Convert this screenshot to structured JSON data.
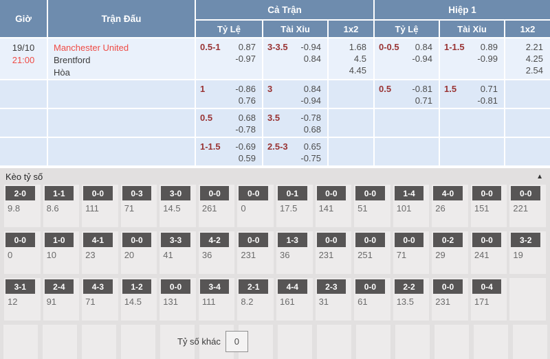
{
  "table": {
    "headers": {
      "time": "Giờ",
      "match": "Trận Đấu",
      "full_match": "Cả Trận",
      "first_half": "Hiệp 1",
      "handicap": "Tỷ Lệ",
      "over_under": "Tài Xỉu",
      "one_x_two": "1x2"
    },
    "rows": [
      {
        "date": "19/10",
        "time": "21:00",
        "home": "Manchester United",
        "away": "Brentford",
        "draw": "Hòa",
        "ft_hdp_line": "0.5-1",
        "ft_hdp_o1": "0.87",
        "ft_hdp_o2": "-0.97",
        "ft_ou_line": "3-3.5",
        "ft_ou_o1": "-0.94",
        "ft_ou_o2": "0.84",
        "ft_1x2": [
          "1.68",
          "4.5",
          "4.45"
        ],
        "fh_hdp_line": "0-0.5",
        "fh_hdp_o1": "0.84",
        "fh_hdp_o2": "-0.94",
        "fh_ou_line": "1-1.5",
        "fh_ou_o1": "0.89",
        "fh_ou_o2": "-0.99",
        "fh_1x2": [
          "2.21",
          "4.25",
          "2.54"
        ]
      },
      {
        "ft_hdp_line": "1",
        "ft_hdp_o1": "-0.86",
        "ft_hdp_o2": "0.76",
        "ft_ou_line": "3",
        "ft_ou_o1": "0.84",
        "ft_ou_o2": "-0.94",
        "fh_hdp_line": "0.5",
        "fh_hdp_o1": "-0.81",
        "fh_hdp_o2": "0.71",
        "fh_ou_line": "1.5",
        "fh_ou_o1": "0.71",
        "fh_ou_o2": "-0.81"
      },
      {
        "ft_hdp_line": "0.5",
        "ft_hdp_o1": "0.68",
        "ft_hdp_o2": "-0.78",
        "ft_ou_line": "3.5",
        "ft_ou_o1": "-0.78",
        "ft_ou_o2": "0.68"
      },
      {
        "ft_hdp_line": "1-1.5",
        "ft_hdp_o1": "-0.69",
        "ft_hdp_o2": "0.59",
        "ft_ou_line": "2.5-3",
        "ft_ou_o1": "0.65",
        "ft_ou_o2": "-0.75"
      }
    ]
  },
  "score_section": {
    "title": "Kèo tỷ số",
    "collapse_icon": "▲",
    "rows": [
      [
        {
          "s": "2-0",
          "v": "9.8"
        },
        {
          "s": "1-1",
          "v": "8.6"
        },
        {
          "s": "0-0",
          "v": "111"
        },
        {
          "s": "0-3",
          "v": "71"
        },
        {
          "s": "3-0",
          "v": "14.5"
        },
        {
          "s": "0-0",
          "v": "261"
        },
        {
          "s": "0-0",
          "v": "0"
        },
        {
          "s": "0-1",
          "v": "17.5"
        },
        {
          "s": "0-0",
          "v": "141"
        },
        {
          "s": "0-0",
          "v": "51"
        },
        {
          "s": "1-4",
          "v": "101"
        },
        {
          "s": "4-0",
          "v": "26"
        },
        {
          "s": "0-0",
          "v": "151"
        },
        {
          "s": "0-0",
          "v": "221"
        }
      ],
      [
        {
          "s": "0-0",
          "v": "0"
        },
        {
          "s": "1-0",
          "v": "10"
        },
        {
          "s": "4-1",
          "v": "23"
        },
        {
          "s": "0-0",
          "v": "20"
        },
        {
          "s": "3-3",
          "v": "41"
        },
        {
          "s": "4-2",
          "v": "36"
        },
        {
          "s": "0-0",
          "v": "231"
        },
        {
          "s": "1-3",
          "v": "36"
        },
        {
          "s": "0-0",
          "v": "231"
        },
        {
          "s": "0-0",
          "v": "251"
        },
        {
          "s": "0-0",
          "v": "71"
        },
        {
          "s": "0-2",
          "v": "29"
        },
        {
          "s": "0-0",
          "v": "241"
        },
        {
          "s": "3-2",
          "v": "19"
        }
      ],
      [
        {
          "s": "3-1",
          "v": "12"
        },
        {
          "s": "2-4",
          "v": "91"
        },
        {
          "s": "4-3",
          "v": "71"
        },
        {
          "s": "1-2",
          "v": "14.5"
        },
        {
          "s": "0-0",
          "v": "131"
        },
        {
          "s": "3-4",
          "v": "111"
        },
        {
          "s": "2-1",
          "v": "8.2"
        },
        {
          "s": "4-4",
          "v": "161"
        },
        {
          "s": "2-3",
          "v": "31"
        },
        {
          "s": "0-0",
          "v": "61"
        },
        {
          "s": "2-2",
          "v": "13.5"
        },
        {
          "s": "0-0",
          "v": "231"
        },
        {
          "s": "0-4",
          "v": "171"
        },
        {
          "s": "",
          "v": ""
        }
      ]
    ],
    "other_label": "Tỷ số khác",
    "other_value": "0"
  },
  "colors": {
    "header_blue": "#6e8cae",
    "row_highlight": "#eaf1fb",
    "row_blue": "#dde8f7",
    "handicap_maroon": "#993333",
    "accent_red": "#ef4b45",
    "score_box_gray": "#575555",
    "section_gray": "#e2e0e0"
  }
}
